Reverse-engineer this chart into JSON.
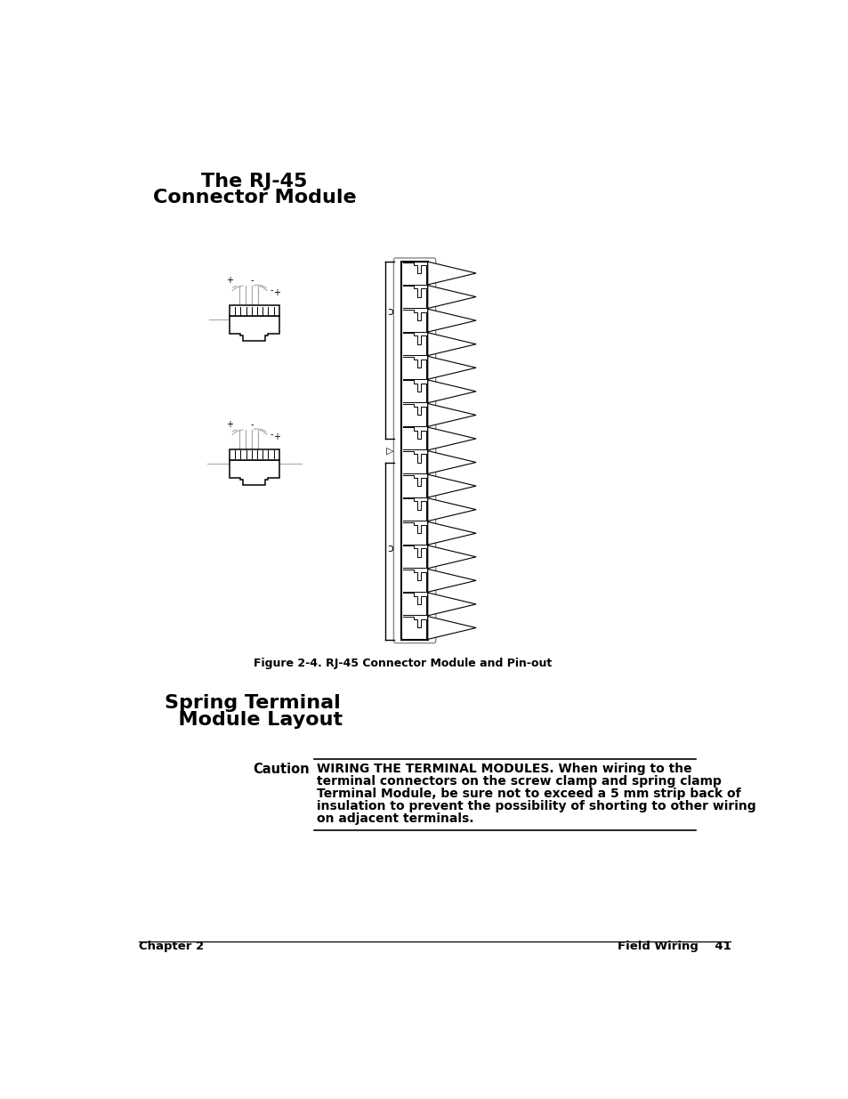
{
  "title1": "The RJ-45",
  "title2": "Connector Module",
  "section_title1": "Spring Terminal",
  "section_title2": "  Module Layout",
  "figure_caption": "Figure 2-4. RJ-45 Connector Module and Pin-out",
  "caution_label": "Caution",
  "caution_line1": "WIRING THE TERMINAL MODULES. When wiring to the",
  "caution_line2": "terminal connectors on the screw clamp and spring clamp",
  "caution_line3": "Terminal Module, be sure not to exceed a 5 mm strip back of",
  "caution_line4": "insulation to prevent the possibility of shorting to other wiring",
  "caution_line5": "on adjacent terminals.",
  "footer_left": "Chapter 2",
  "footer_right": "Field Wiring    41",
  "bg_color": "#ffffff",
  "text_color": "#000000",
  "line_color": "#000000",
  "gray_color": "#aaaaaa"
}
